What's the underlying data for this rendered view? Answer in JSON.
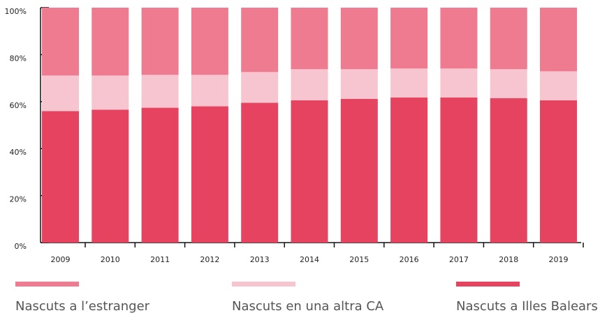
{
  "chart_data": {
    "type": "stacked_bar",
    "categories": [
      "2009",
      "2010",
      "2011",
      "2012",
      "2013",
      "2014",
      "2015",
      "2016",
      "2017",
      "2018",
      "2019"
    ],
    "series": [
      {
        "name": "Nascuts a l’estranger",
        "color": "#ee7b8f",
        "values": [
          28.9,
          28.9,
          28.6,
          28.6,
          27.4,
          26.2,
          26.2,
          25.9,
          25.9,
          26.2,
          27.1
        ]
      },
      {
        "name": "Nascuts en una altra CA",
        "color": "#f7c5cf",
        "values": [
          15.1,
          14.5,
          14.0,
          13.4,
          13.1,
          13.2,
          12.6,
          12.3,
          12.3,
          12.3,
          12.3
        ]
      },
      {
        "name": "Nascuts a Illes Balears",
        "color": "#e64360",
        "values": [
          56.0,
          56.6,
          57.4,
          58.0,
          59.5,
          60.6,
          61.2,
          61.8,
          61.8,
          61.5,
          60.6
        ]
      }
    ],
    "ylim": [
      0,
      100
    ],
    "yticks": [
      {
        "value": 0,
        "label": "0%"
      },
      {
        "value": 20,
        "label": "20%"
      },
      {
        "value": 40,
        "label": "40%"
      },
      {
        "value": 60,
        "label": "60%"
      },
      {
        "value": 80,
        "label": "80%"
      },
      {
        "value": 100,
        "label": "100%"
      }
    ]
  }
}
